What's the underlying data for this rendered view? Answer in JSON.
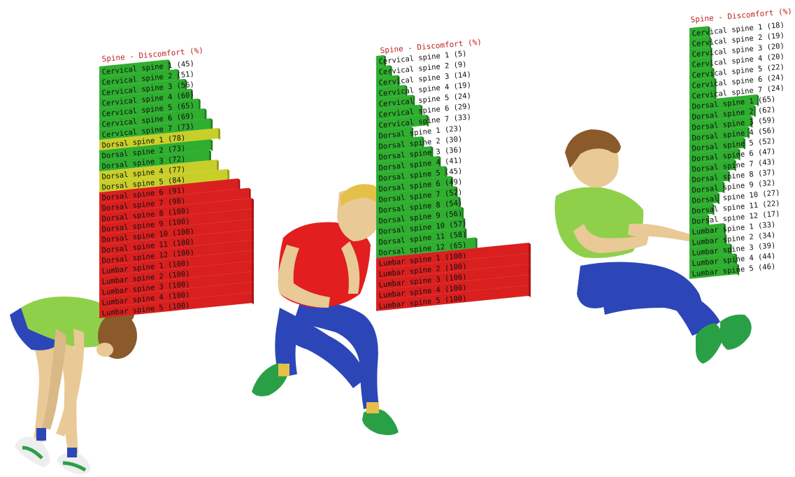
{
  "colors": {
    "green": "#2fae2f",
    "green_side": "#1e7e1e",
    "yellow": "#c9cf2a",
    "yellow_side": "#9a9f18",
    "red": "#d9201f",
    "red_side": "#a81414",
    "title": "#c0201f",
    "label_on_bar": "#111111",
    "label_off_bar": "#111111",
    "skin": "#e9c995",
    "hair_blond": "#e4c04a",
    "hair_brown": "#8a5a2b",
    "shirt_green": "#8fd04a",
    "shirt_red": "#e21e1e",
    "pants_blue": "#2c46b8",
    "shoe_green": "#2aa046",
    "shoe_white": "#eeeeee"
  },
  "chart_data": [
    {
      "type": "bar",
      "title": "Spine - Discomfort (%)",
      "orientation": "horizontal",
      "xlim": [
        0,
        100
      ],
      "categories": [
        "Cervical spine 1",
        "Cervical spine 2",
        "Cervical spine 3",
        "Cervical spine 4",
        "Cervical spine 5",
        "Cervical spine 6",
        "Cervical spine 7",
        "Dorsal spine 1",
        "Dorsal spine 2",
        "Dorsal spine 3",
        "Dorsal spine 4",
        "Dorsal spine 5",
        "Dorsal spine 6",
        "Dorsal spine 7",
        "Dorsal spine 8",
        "Dorsal spine 9",
        "Dorsal spine 10",
        "Dorsal spine 11",
        "Dorsal spine 12",
        "Lumbar spine 1",
        "Lumbar spine 2",
        "Lumbar spine 3",
        "Lumbar spine 4",
        "Lumbar spine 5"
      ],
      "values": [
        45,
        51,
        56,
        60,
        65,
        69,
        73,
        78,
        73,
        72,
        77,
        84,
        91,
        98,
        100,
        100,
        100,
        100,
        100,
        100,
        100,
        100,
        100,
        100
      ],
      "colors": [
        "green",
        "green",
        "green",
        "green",
        "green",
        "green",
        "green",
        "yellow",
        "green",
        "green",
        "yellow",
        "yellow",
        "red",
        "red",
        "red",
        "red",
        "red",
        "red",
        "red",
        "red",
        "red",
        "red",
        "red",
        "red"
      ]
    },
    {
      "type": "bar",
      "title": "Spine - Discomfort (%)",
      "orientation": "horizontal",
      "xlim": [
        0,
        100
      ],
      "categories": [
        "Cervical spine 1",
        "Cervical spine 2",
        "Cervical spine 3",
        "Cervical spine 4",
        "Cervical spine 5",
        "Cervical spine 6",
        "Cervical spine 7",
        "Dorsal spine 1",
        "Dorsal spine 2",
        "Dorsal spine 3",
        "Dorsal spine 4",
        "Dorsal spine 5",
        "Dorsal spine 6",
        "Dorsal spine 7",
        "Dorsal spine 8",
        "Dorsal spine 9",
        "Dorsal spine 10",
        "Dorsal spine 11",
        "Dorsal spine 12",
        "Lumbar spine 1",
        "Lumbar spine 2",
        "Lumbar spine 3",
        "Lumbar spine 4",
        "Lumbar spine 5"
      ],
      "values": [
        5,
        9,
        14,
        19,
        24,
        29,
        33,
        23,
        30,
        36,
        41,
        45,
        49,
        52,
        54,
        56,
        57,
        58,
        65,
        100,
        100,
        100,
        100,
        100
      ],
      "colors": [
        "green",
        "green",
        "green",
        "green",
        "green",
        "green",
        "green",
        "green",
        "green",
        "green",
        "green",
        "green",
        "green",
        "green",
        "green",
        "green",
        "green",
        "green",
        "green",
        "red",
        "red",
        "red",
        "red",
        "red"
      ]
    },
    {
      "type": "bar",
      "title": "Spine - Discomfort (%)",
      "orientation": "horizontal",
      "xlim": [
        0,
        100
      ],
      "categories": [
        "Cervical spine 1",
        "Cervical spine 2",
        "Cervical spine 3",
        "Cervical spine 4",
        "Cervical spine 5",
        "Cervical spine 6",
        "Cervical spine 7",
        "Dorsal spine 1",
        "Dorsal spine 2",
        "Dorsal spine 3",
        "Dorsal spine 4",
        "Dorsal spine 5",
        "Dorsal spine 6",
        "Dorsal spine 7",
        "Dorsal spine 8",
        "Dorsal spine 9",
        "Dorsal spine 10",
        "Dorsal spine 11",
        "Dorsal spine 12",
        "Lumbar spine 1",
        "Lumbar spine 2",
        "Lumbar spine 3",
        "Lumbar spine 4",
        "Lumbar spine 5"
      ],
      "values": [
        18,
        19,
        20,
        20,
        22,
        24,
        24,
        65,
        62,
        59,
        56,
        52,
        47,
        43,
        37,
        32,
        27,
        22,
        17,
        33,
        34,
        39,
        44,
        46
      ],
      "colors": [
        "green",
        "green",
        "green",
        "green",
        "green",
        "green",
        "green",
        "green",
        "green",
        "green",
        "green",
        "green",
        "green",
        "green",
        "green",
        "green",
        "green",
        "green",
        "green",
        "green",
        "green",
        "green",
        "green",
        "green"
      ]
    }
  ]
}
